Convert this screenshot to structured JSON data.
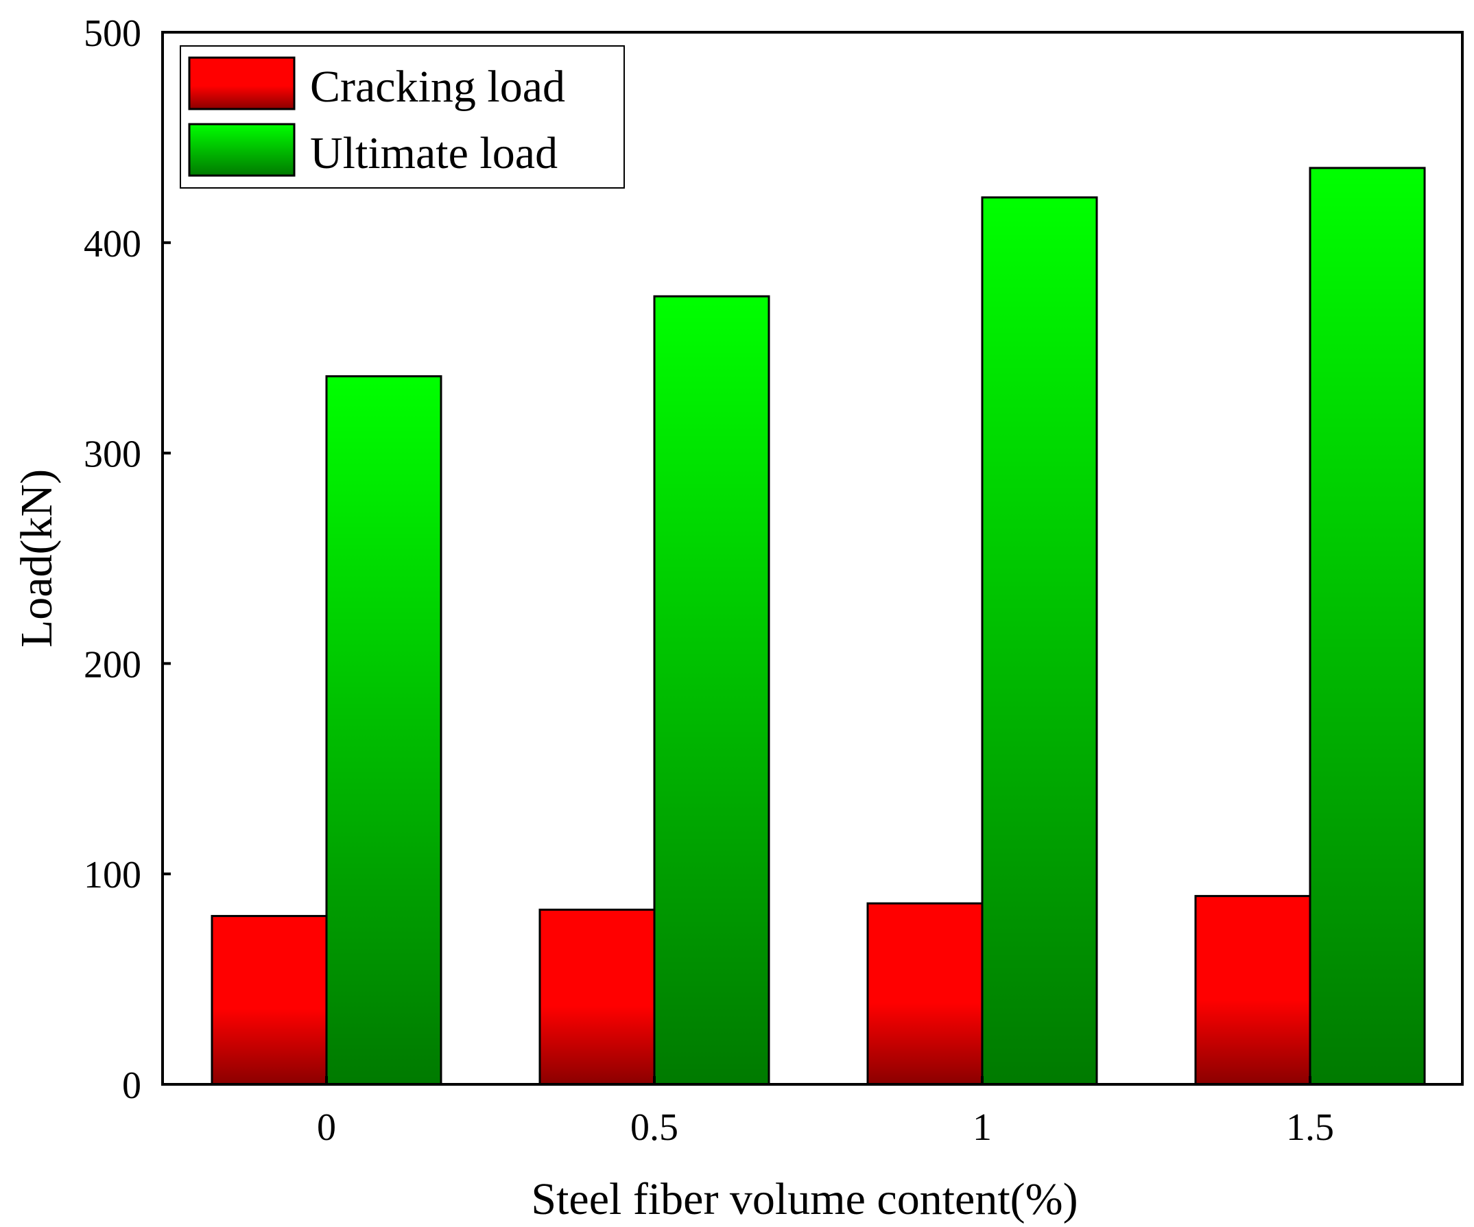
{
  "chart_data": {
    "type": "bar",
    "categories": [
      "0",
      "0.5",
      "1",
      "1.5"
    ],
    "series": [
      {
        "name": "Cracking load",
        "values": [
          80,
          83,
          86,
          89.5
        ],
        "color_top": "#ff0000",
        "color_bottom": "#8b0000"
      },
      {
        "name": "Ultimate load",
        "values": [
          336.5,
          374.5,
          421.5,
          435.5
        ],
        "color_top": "#00ff00",
        "color_bottom": "#006400"
      }
    ],
    "title": "",
    "xlabel": "Steel fiber volume content(%)",
    "ylabel": "Load(kN)",
    "ylim": [
      0,
      500
    ],
    "yticks": [
      0,
      100,
      200,
      300,
      400,
      500
    ],
    "grid": false,
    "legend_position": "top-left"
  }
}
